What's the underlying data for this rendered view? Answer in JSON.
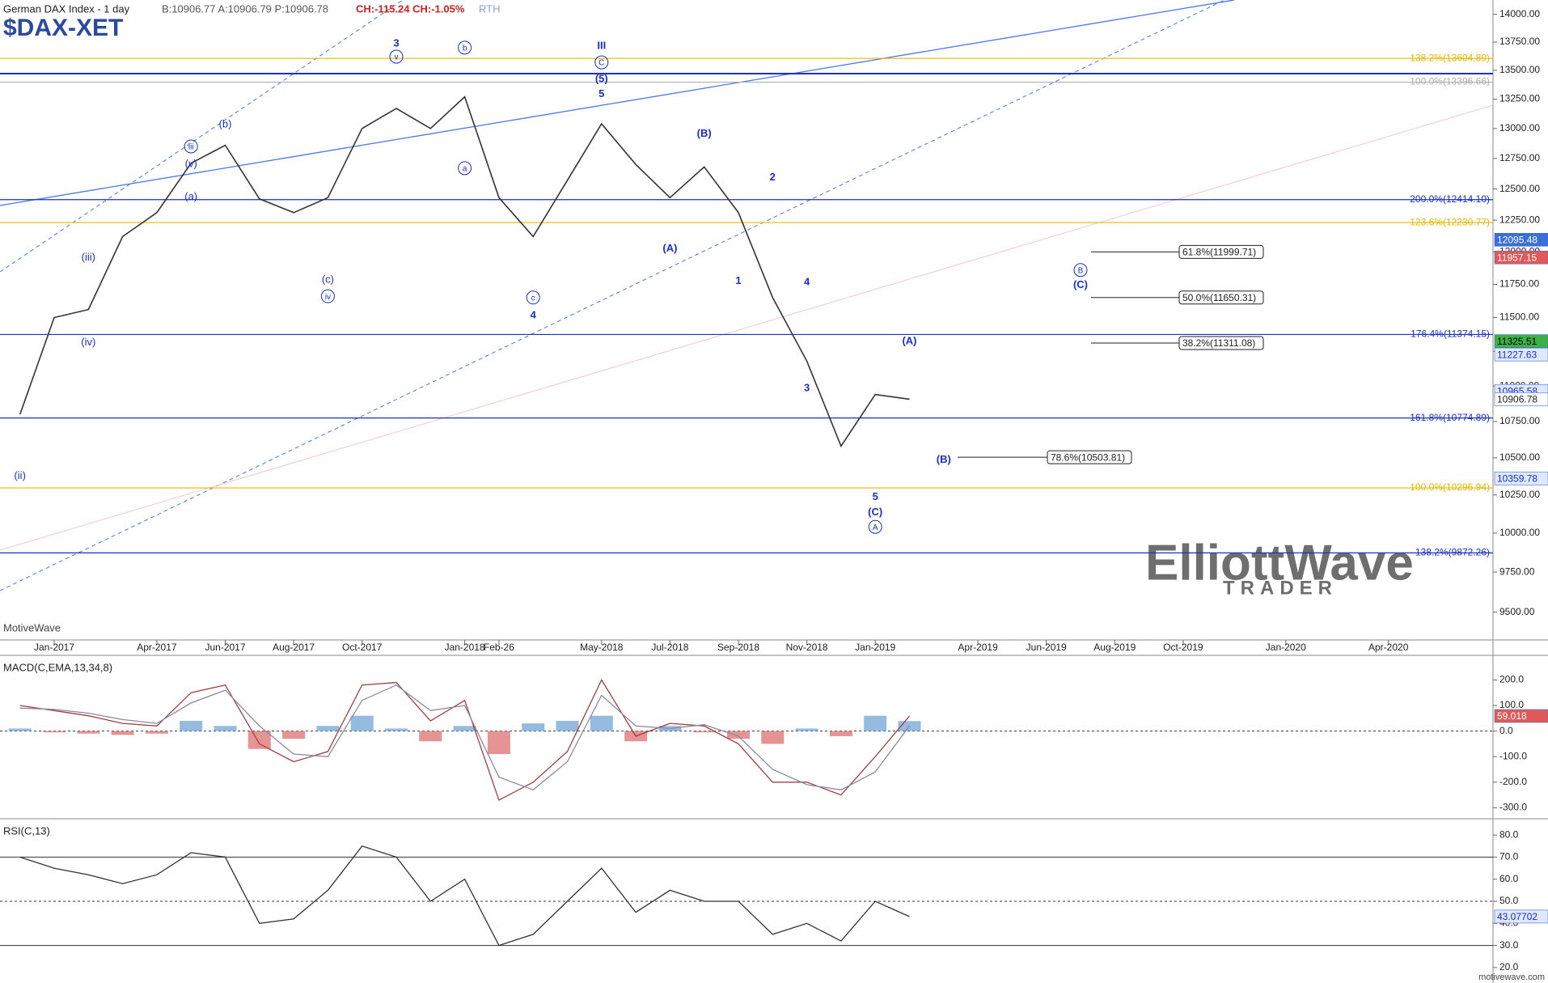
{
  "header": {
    "title": "German DAX Index - 1 day",
    "quote": "B:10906.77 A:10906.79 P:10906.78",
    "change": "CH:-115.24 CH:-1.05%",
    "session": "RTH",
    "symbol": "$DAX-XET",
    "brand": "MotiveWave",
    "footer": "motivewave.com",
    "logo_main": "ElliottWave",
    "logo_sub": "TRADER"
  },
  "chart_data": [
    {
      "type": "line",
      "log": true,
      "color": "#333333",
      "x": [
        "Dec-2016",
        "Jan-2017",
        "Feb-2017",
        "Mar-2017",
        "Apr-2017",
        "May-2017",
        "Jun-2017",
        "Jul-2017",
        "Aug-2017",
        "Sep-2017",
        "Oct-2017",
        "Nov-2017",
        "Dec-2017",
        "Jan-2018",
        "Feb-2018",
        "Mar-2018",
        "Apr-2018",
        "May-2018",
        "Jun-2018",
        "Jul-2018",
        "Aug-2018",
        "Sep-2018",
        "Oct-2018",
        "Nov-2018",
        "Dec-2018",
        "Jan-2019",
        "Feb-2019"
      ],
      "values": [
        10800,
        11500,
        11560,
        12120,
        12310,
        12710,
        12860,
        12420,
        12310,
        12430,
        13000,
        13170,
        13000,
        13270,
        12430,
        12120,
        12570,
        13040,
        12700,
        12430,
        12680,
        12310,
        11650,
        11180,
        10580,
        10940,
        10906.78
      ],
      "ylim": [
        9330,
        14130
      ],
      "yticks": [
        {
          "value": 14000,
          "label": "14000.00"
        },
        {
          "value": 13750,
          "label": "13750.00"
        },
        {
          "value": 13500,
          "label": "13500.00"
        },
        {
          "value": 13250,
          "label": "13250.00"
        },
        {
          "value": 13000,
          "label": "13000.00"
        },
        {
          "value": 12750,
          "label": "12750.00"
        },
        {
          "value": 12500,
          "label": "12500.00"
        },
        {
          "value": 12250,
          "label": "12250.00"
        },
        {
          "value": 12000,
          "label": "12000.00"
        },
        {
          "value": 11750,
          "label": "11750.00"
        },
        {
          "value": 11500,
          "label": "11500.00"
        },
        {
          "value": 11250,
          "label": "11250.00"
        },
        {
          "value": 11000,
          "label": "11000.00"
        },
        {
          "value": 10750,
          "label": "10750.00"
        },
        {
          "value": 10500,
          "label": "10500.00"
        },
        {
          "value": 10250,
          "label": "10250.00"
        },
        {
          "value": 10000,
          "label": "10000.00"
        },
        {
          "value": 9750,
          "label": "9750.00"
        },
        {
          "value": 9500,
          "label": "9500.00"
        }
      ],
      "xticks": [
        {
          "value": "Jan-2017",
          "label": "Jan-2017"
        },
        {
          "value": "Apr-2017",
          "label": "Apr-2017"
        },
        {
          "value": "Jun-2017",
          "label": "Jun-2017"
        },
        {
          "value": "Aug-2017",
          "label": "Aug-2017"
        },
        {
          "value": "Oct-2017",
          "label": "Oct-2017"
        },
        {
          "value": "Jan-2018",
          "label": "Jan-2018"
        },
        {
          "value": "Feb-2018",
          "label": "Feb-26"
        },
        {
          "value": "May-2018",
          "label": "May-2018"
        },
        {
          "value": "Jul-2018",
          "label": "Jul-2018"
        },
        {
          "value": "Sep-2018",
          "label": "Sep-2018"
        },
        {
          "value": "Nov-2018",
          "label": "Nov-2018"
        },
        {
          "value": "Jan-2019",
          "label": "Jan-2019"
        },
        {
          "value": "Apr-2019",
          "label": "Apr-2019"
        },
        {
          "value": "Jun-2019",
          "label": "Jun-2019"
        },
        {
          "value": "Aug-2019",
          "label": "Aug-2019"
        },
        {
          "value": "Oct-2019",
          "label": "Oct-2019"
        },
        {
          "value": "Jan-2020",
          "label": "Jan-2020"
        },
        {
          "value": "Apr-2020",
          "label": "Apr-2020"
        }
      ],
      "levels": [
        {
          "label": "138.2%(13604.89)",
          "value": 13604.89,
          "color": "#e8b800"
        },
        {
          "label": "100.0%(13396.66)",
          "value": 13396.66,
          "color": "#b0b0b0"
        },
        {
          "label": "200.0%(12414.10)",
          "value": 12414.1,
          "color": "#1a2fcc"
        },
        {
          "label": "123.6%(12230.77)",
          "value": 12230.77,
          "color": "#e8b800"
        },
        {
          "label": "176.4%(11374.15)",
          "value": 11374.15,
          "color": "#1a2fcc"
        },
        {
          "label": "161.8%(10774.89)",
          "value": 10774.89,
          "color": "#1a2fcc"
        },
        {
          "label": "100.0%(10296.94)",
          "value": 10296.94,
          "color": "#e8b800"
        },
        {
          "label": "138.2%(9872.26)",
          "value": 9872.26,
          "color": "#1a2fcc"
        }
      ],
      "fib_boxes": [
        {
          "label": "61.8%(11999.71)",
          "value": 11999.71
        },
        {
          "label": "50.0%(11650.31)",
          "value": 11650.31
        },
        {
          "label": "38.2%(11311.08)",
          "value": 11311.08
        },
        {
          "label": "78.6%(10503.81)",
          "value": 10503.81
        }
      ],
      "price_tags": [
        {
          "value": 12095.48,
          "color": "#3a6fd8",
          "text_color": "#ffffff"
        },
        {
          "value": 11957.15,
          "color": "#e05a5a",
          "text_color": "#ffffff"
        },
        {
          "value": 11325.51,
          "color": "#3cb043",
          "text_color": "#000000"
        },
        {
          "value": 11227.63,
          "color": "#dfe8ff",
          "text_color": "#1a2fcc"
        },
        {
          "value": 10965.58,
          "color": "#dfe8ff",
          "text_color": "#1a2fcc"
        },
        {
          "value": 10906.78,
          "color": "#ffffff",
          "text_color": "#222222"
        },
        {
          "value": 10359.78,
          "color": "#dfe8ff",
          "text_color": "#1a2fcc"
        }
      ],
      "wave_labels": [
        {
          "text": "(ii)",
          "x": "Dec-2016",
          "y": 10380
        },
        {
          "text": "(iii)",
          "x": "Feb-2017",
          "y": 11960
        },
        {
          "text": "(iv)",
          "x": "Feb-2017",
          "y": 11320
        },
        {
          "text": "iii",
          "x": "May-2017",
          "y": 12850,
          "circled": true
        },
        {
          "text": "(v)",
          "x": "May-2017",
          "y": 12710
        },
        {
          "text": "(a)",
          "x": "May-2017",
          "y": 12440
        },
        {
          "text": "(b)",
          "x": "Jun-2017",
          "y": 13040
        },
        {
          "text": "(c)",
          "x": "Sep-2017",
          "y": 11790
        },
        {
          "text": "iv",
          "x": "Sep-2017",
          "y": 11660,
          "circled": true
        },
        {
          "text": "3",
          "x": "Nov-2017",
          "y": 13743
        },
        {
          "text": "v",
          "x": "Nov-2017",
          "y": 13620,
          "circled": true
        },
        {
          "text": "b",
          "x": "Jan-2018",
          "y": 13700,
          "circled": true
        },
        {
          "text": "a",
          "x": "Jan-2018",
          "y": 12670,
          "circled": true
        },
        {
          "text": "c",
          "x": "Mar-2018",
          "y": 11650,
          "circled": true
        },
        {
          "text": "4",
          "x": "Mar-2018",
          "y": 11520
        },
        {
          "text": "III",
          "x": "May-2018",
          "y": 13720
        },
        {
          "text": "C",
          "x": "May-2018",
          "y": 13570,
          "circled": true
        },
        {
          "text": "(5)",
          "x": "May-2018",
          "y": 13430
        },
        {
          "text": "5",
          "x": "May-2018",
          "y": 13300
        },
        {
          "text": "(A)",
          "x": "Jul-2018",
          "y": 12030
        },
        {
          "text": "(B)",
          "x": "Aug-2018",
          "y": 12960
        },
        {
          "text": "1",
          "x": "Sep-2018",
          "y": 11780
        },
        {
          "text": "2",
          "x": "Oct-2018",
          "y": 12600
        },
        {
          "text": "4",
          "x": "Nov-2018",
          "y": 11770
        },
        {
          "text": "3",
          "x": "Nov-2018",
          "y": 10990
        },
        {
          "text": "5",
          "x": "Jan-2019",
          "y": 10240
        },
        {
          "text": "(C)",
          "x": "Jan-2019",
          "y": 10140
        },
        {
          "text": "A",
          "x": "Jan-2019",
          "y": 10040,
          "circled": true
        },
        {
          "text": "(A)",
          "x": "Feb-2019",
          "y": 11330
        },
        {
          "text": "(B)",
          "x": "Mar-2019",
          "y": 10490
        },
        {
          "text": "B",
          "x": "Jul-2019",
          "y": 11860,
          "circled": true
        },
        {
          "text": "(C)",
          "x": "Jul-2019",
          "y": 11750
        }
      ]
    },
    {
      "type": "line",
      "title": "MACD(C,EMA,13,34,8)",
      "ylim": [
        -340,
        290
      ],
      "yticks": [
        {
          "value": 200,
          "label": "200.0"
        },
        {
          "value": 100,
          "label": "100.0"
        },
        {
          "value": 0,
          "label": "0.0"
        },
        {
          "value": -100,
          "label": "-100.0"
        },
        {
          "value": -200,
          "label": "-200.0"
        },
        {
          "value": -300,
          "label": "-300.0"
        }
      ],
      "series": [
        {
          "color": "#a04040",
          "values": [
            100,
            80,
            60,
            30,
            20,
            150,
            180,
            -50,
            -120,
            -80,
            180,
            190,
            40,
            120,
            -270,
            -200,
            -80,
            200,
            -20,
            30,
            20,
            -50,
            -200,
            -200,
            -250,
            -100,
            59.018
          ]
        },
        {
          "color": "#8a8aa8",
          "values": [
            90,
            85,
            70,
            45,
            30,
            110,
            160,
            20,
            -90,
            -100,
            120,
            180,
            80,
            100,
            -180,
            -230,
            -120,
            140,
            20,
            10,
            25,
            -20,
            -150,
            -210,
            -230,
            -160,
            20
          ]
        }
      ],
      "histogram": {
        "values": [
          10,
          -5,
          -10,
          -15,
          -10,
          40,
          20,
          -70,
          -30,
          20,
          60,
          10,
          -40,
          20,
          -90,
          30,
          40,
          60,
          -40,
          20,
          -5,
          -30,
          -50,
          10,
          -20,
          60,
          39
        ],
        "up_color": "#7aaad8",
        "down_color": "#e07878"
      },
      "last_value": 59.018,
      "last_color": "#e05a5a"
    },
    {
      "type": "line",
      "title": "RSI(C,13)",
      "ylim": [
        13,
        87
      ],
      "yticks": [
        {
          "value": 80,
          "label": "80.0"
        },
        {
          "value": 70,
          "label": "70.0"
        },
        {
          "value": 60,
          "label": "60.0"
        },
        {
          "value": 50,
          "label": "50.0"
        },
        {
          "value": 40,
          "label": "40.0"
        },
        {
          "value": 30,
          "label": "30.0"
        },
        {
          "value": 20,
          "label": "20.0"
        }
      ],
      "hlines": [
        {
          "value": 70,
          "style": "solid"
        },
        {
          "value": 50,
          "style": "dashed"
        },
        {
          "value": 30,
          "style": "solid"
        }
      ],
      "series": [
        {
          "color": "#333333",
          "values": [
            70,
            65,
            62,
            58,
            62,
            72,
            70,
            40,
            42,
            55,
            75,
            70,
            50,
            60,
            30,
            35,
            50,
            65,
            45,
            55,
            50,
            50,
            35,
            40,
            32,
            50,
            43.07702
          ]
        }
      ],
      "last_value": 43.07702,
      "last_color": "#dfe8ff"
    }
  ]
}
